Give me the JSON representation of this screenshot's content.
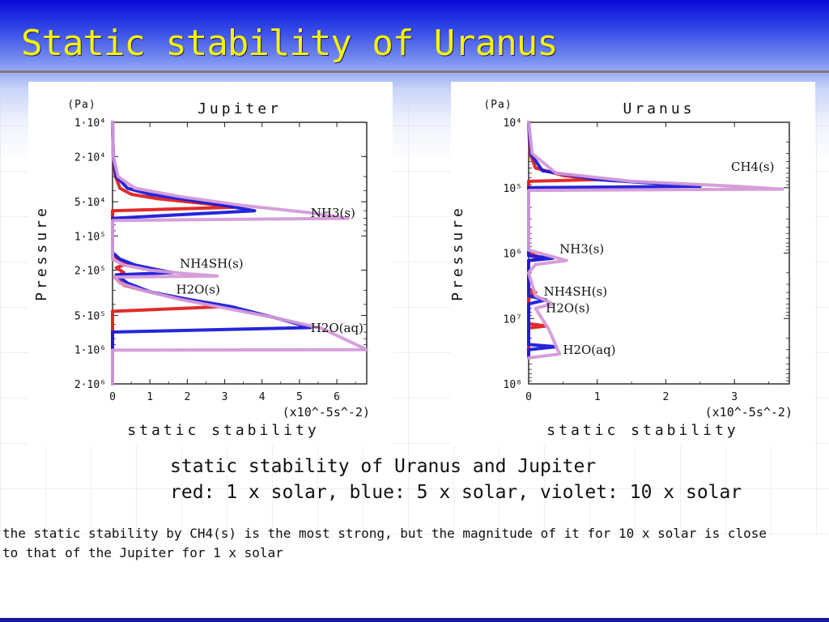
{
  "slide": {
    "title": "Static stability of Uranus",
    "caption_line1": "static stability of Uranus and Jupiter",
    "caption_line2": "red: 1 x solar, blue: 5 x solar, violet: 10 x solar",
    "note_line1": " the static stability by CH4(s) is the most strong, but the magnitude of it for 10 x solar is close",
    "note_line2": "to that of the Jupiter for 1 x solar"
  },
  "colors": {
    "red": "#e02020",
    "blue": "#1a1ad8",
    "violet": "#d49ad8",
    "title": "#f4f400"
  },
  "chart_data": [
    {
      "type": "line",
      "title": "Jupiter",
      "xlabel": "static stability",
      "xunit": "(x10^-5s^-2)",
      "ylabel": "Pressure",
      "yunit": "(Pa)",
      "xlim": [
        0,
        6.8
      ],
      "ylim": [
        10000,
        2000000
      ],
      "yscale": "log",
      "y_inverted": true,
      "xticks": [
        0,
        1,
        2,
        3,
        4,
        5,
        6
      ],
      "yticks": [
        {
          "value": 10000,
          "label": "1·10⁴"
        },
        {
          "value": 20000,
          "label": "2·10⁴"
        },
        {
          "value": 50000,
          "label": "5·10⁴"
        },
        {
          "value": 100000,
          "label": "1·10⁵"
        },
        {
          "value": 200000,
          "label": "2·10⁵"
        },
        {
          "value": 500000,
          "label": "5·10⁵"
        },
        {
          "value": 1000000,
          "label": "1·10⁶"
        },
        {
          "value": 2000000,
          "label": "2·10⁶"
        }
      ],
      "annotations": [
        {
          "text": "NH3(s)",
          "x": 5.3,
          "y": 68000
        },
        {
          "text": "NH4SH(s)",
          "x": 1.8,
          "y": 190000
        },
        {
          "text": "H2O(s)",
          "x": 1.7,
          "y": 320000
        },
        {
          "text": "H2O(aq)",
          "x": 5.3,
          "y": 700000
        }
      ],
      "series": [
        {
          "color": "red",
          "points": [
            [
              0,
              10000
            ],
            [
              0.02,
              20000
            ],
            [
              0.08,
              30000
            ],
            [
              0.2,
              38000
            ],
            [
              0.5,
              43000
            ],
            [
              1.2,
              47000
            ],
            [
              2.5,
              52000
            ],
            [
              3.2,
              56000
            ],
            [
              0,
              60000
            ],
            [
              0,
              140000
            ],
            [
              0.1,
              155000
            ],
            [
              0.2,
              165000
            ],
            [
              0.4,
              175000
            ],
            [
              0.1,
              190000
            ],
            [
              0.3,
              210000
            ],
            [
              0.05,
              230000
            ],
            [
              0.3,
              270000
            ],
            [
              0.8,
              300000
            ],
            [
              1.5,
              340000
            ],
            [
              2.4,
              380000
            ],
            [
              2.8,
              420000
            ],
            [
              0,
              460000
            ],
            [
              0,
              1000000
            ],
            [
              0,
              2000000
            ]
          ]
        },
        {
          "color": "blue",
          "points": [
            [
              0,
              10000
            ],
            [
              0.02,
              20000
            ],
            [
              0.1,
              30000
            ],
            [
              0.4,
              38000
            ],
            [
              1,
              43000
            ],
            [
              2,
              48000
            ],
            [
              3,
              54000
            ],
            [
              3.8,
              60000
            ],
            [
              0,
              70000
            ],
            [
              0,
              140000
            ],
            [
              0.2,
              160000
            ],
            [
              0.6,
              180000
            ],
            [
              1.1,
              195000
            ],
            [
              1.6,
              210000
            ],
            [
              0.1,
              220000
            ],
            [
              0.4,
              260000
            ],
            [
              1,
              310000
            ],
            [
              2,
              360000
            ],
            [
              3.2,
              420000
            ],
            [
              4.5,
              540000
            ],
            [
              5.3,
              640000
            ],
            [
              0,
              700000
            ],
            [
              0,
              1000000
            ],
            [
              0,
              2000000
            ]
          ]
        },
        {
          "color": "violet",
          "points": [
            [
              0,
              10000
            ],
            [
              0.02,
              20000
            ],
            [
              0.15,
              30000
            ],
            [
              0.6,
              38000
            ],
            [
              1.8,
              45000
            ],
            [
              3.5,
              54000
            ],
            [
              5.2,
              62000
            ],
            [
              6.3,
              70000
            ],
            [
              0,
              73000
            ],
            [
              0,
              160000
            ],
            [
              0.3,
              180000
            ],
            [
              1,
              200000
            ],
            [
              2,
              215000
            ],
            [
              2.8,
              225000
            ],
            [
              0.05,
              230000
            ],
            [
              0.2,
              260000
            ],
            [
              0.8,
              300000
            ],
            [
              1.8,
              360000
            ],
            [
              3,
              430000
            ],
            [
              4.3,
              520000
            ],
            [
              5.6,
              650000
            ],
            [
              6.8,
              1000000
            ],
            [
              0,
              1010000
            ],
            [
              0,
              2000000
            ]
          ]
        }
      ]
    },
    {
      "type": "line",
      "title": "Uranus",
      "xlabel": "static stability",
      "xunit": "(x10^-5s^-2)",
      "ylabel": "Pressure",
      "yunit": "(Pa)",
      "xlim": [
        0,
        3.8
      ],
      "ylim": [
        10000,
        100000000
      ],
      "yscale": "log",
      "y_inverted": true,
      "xticks": [
        0,
        1,
        2,
        3
      ],
      "yticks": [
        {
          "value": 10000,
          "label": "10⁴"
        },
        {
          "value": 100000,
          "label": "10⁵"
        },
        {
          "value": 1000000,
          "label": "10⁶"
        },
        {
          "value": 10000000,
          "label": "10⁷"
        },
        {
          "value": 100000000,
          "label": "10⁸"
        }
      ],
      "annotations": [
        {
          "text": "CH4(s)",
          "x": 2.95,
          "y": 55000
        },
        {
          "text": "NH3(s)",
          "x": 0.45,
          "y": 1000000
        },
        {
          "text": "NH4SH(s)",
          "x": 0.22,
          "y": 4500000
        },
        {
          "text": "H2O(s)",
          "x": 0.25,
          "y": 8000000
        },
        {
          "text": "H2O(aq)",
          "x": 0.5,
          "y": 35000000
        }
      ],
      "series": [
        {
          "color": "red",
          "points": [
            [
              0,
              10000
            ],
            [
              0.02,
              30000
            ],
            [
              0.1,
              50000
            ],
            [
              0.5,
              65000
            ],
            [
              1,
              75000
            ],
            [
              0,
              80000
            ],
            [
              0,
              1000000
            ],
            [
              0.2,
              1200000
            ],
            [
              0,
              1300000
            ],
            [
              0,
              3500000
            ],
            [
              0.1,
              4000000
            ],
            [
              0,
              4500000
            ],
            [
              0,
              12000000
            ],
            [
              0.25,
              13000000
            ],
            [
              0,
              14000000
            ],
            [
              0,
              40000000
            ]
          ]
        },
        {
          "color": "blue",
          "points": [
            [
              0,
              10000
            ],
            [
              0.03,
              30000
            ],
            [
              0.2,
              55000
            ],
            [
              1,
              75000
            ],
            [
              2.5,
              95000
            ],
            [
              0,
              100000
            ],
            [
              0,
              1100000
            ],
            [
              0.35,
              1200000
            ],
            [
              0,
              1300000
            ],
            [
              0,
              4500000
            ],
            [
              0.25,
              5200000
            ],
            [
              0,
              6000000
            ],
            [
              0,
              25000000
            ],
            [
              0.4,
              27000000
            ],
            [
              0,
              30000000
            ],
            [
              0,
              40000000
            ]
          ]
        },
        {
          "color": "violet",
          "points": [
            [
              0,
              10000
            ],
            [
              0.05,
              30000
            ],
            [
              0.4,
              60000
            ],
            [
              1.5,
              80000
            ],
            [
              3,
              95000
            ],
            [
              3.7,
              105000
            ],
            [
              0,
              110000
            ],
            [
              0,
              900000
            ],
            [
              0.55,
              1300000
            ],
            [
              0.1,
              1500000
            ],
            [
              0,
              2000000
            ],
            [
              0.1,
              4500000
            ],
            [
              0.35,
              6000000
            ],
            [
              0.1,
              7000000
            ],
            [
              0.3,
              15000000
            ],
            [
              0.45,
              35000000
            ],
            [
              0,
              40000000
            ]
          ]
        }
      ]
    }
  ]
}
